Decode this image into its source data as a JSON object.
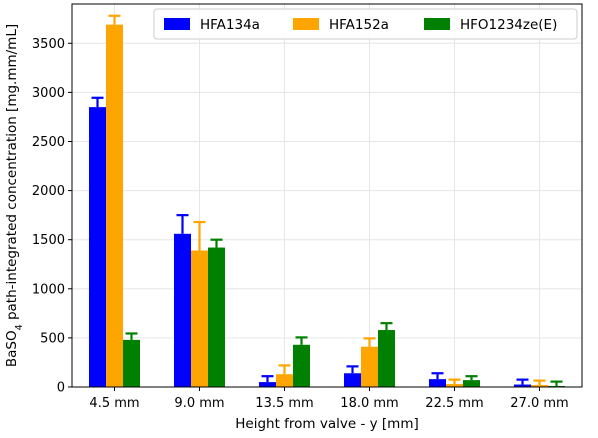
{
  "chart_data": {
    "type": "bar",
    "title": "",
    "xlabel": "Height from valve - y [mm]",
    "ylabel": {
      "prefix": "BaSO",
      "subscript": "4",
      "suffix": " path-integrated concentration [mg.mm/mL]"
    },
    "categories": [
      "4.5 mm",
      "9.0 mm",
      "13.5 mm",
      "18.0 mm",
      "22.5 mm",
      "27.0 mm"
    ],
    "ylim": [
      0,
      3900
    ],
    "yticks": [
      0,
      500,
      1000,
      1500,
      2000,
      2500,
      3000,
      3500
    ],
    "grid": true,
    "legend": "top-right",
    "error_bars": true,
    "series": [
      {
        "name": "HFA134a",
        "color": "#0000ff",
        "values": [
          2850,
          1560,
          50,
          140,
          80,
          25
        ],
        "errors": [
          95,
          190,
          60,
          70,
          60,
          50
        ]
      },
      {
        "name": "HFA152a",
        "color": "#ffa500",
        "values": [
          3690,
          1390,
          130,
          410,
          30,
          20
        ],
        "errors": [
          90,
          290,
          90,
          85,
          45,
          45
        ]
      },
      {
        "name": "HFO1234ze(E)",
        "color": "#008000",
        "values": [
          480,
          1420,
          430,
          580,
          70,
          10
        ],
        "errors": [
          65,
          80,
          75,
          70,
          40,
          45
        ]
      }
    ]
  }
}
